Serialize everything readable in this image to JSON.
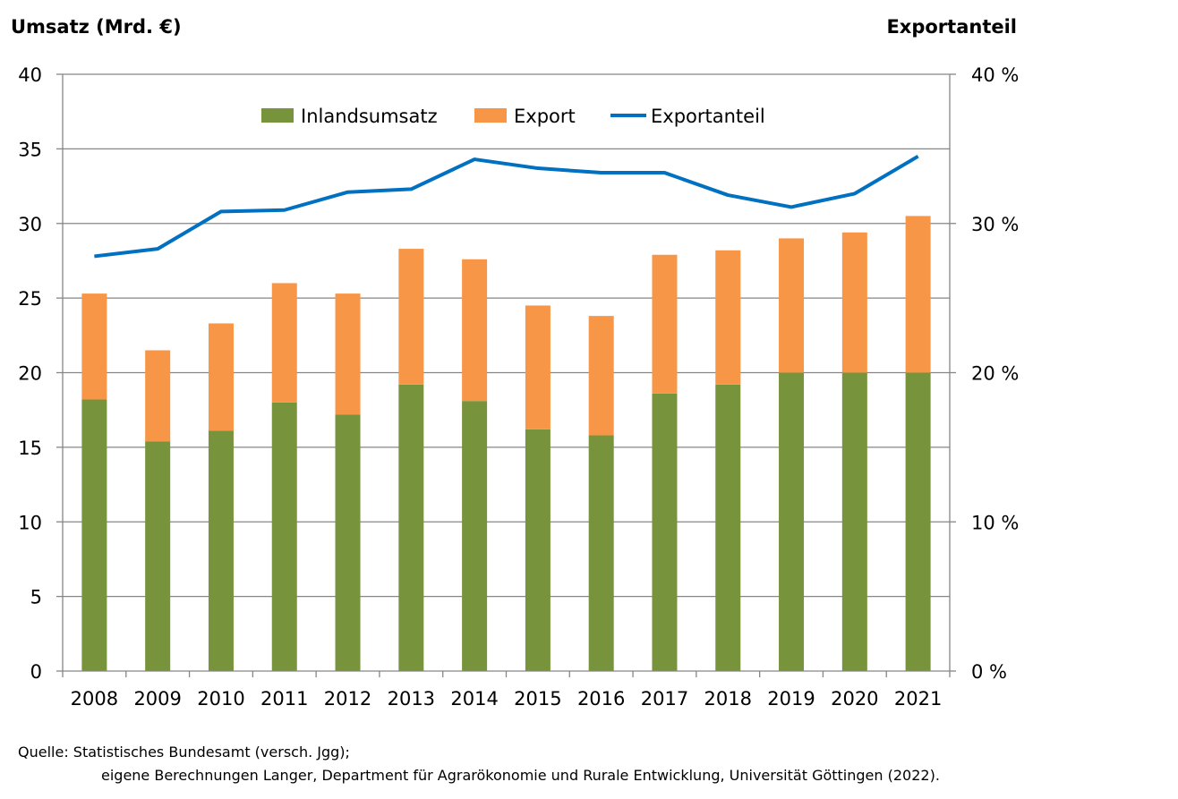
{
  "chart_data": {
    "type": "bar",
    "stacked": true,
    "ylabel_left": "Umsatz (Mrd. €)",
    "ylabel_right": "Exportanteil",
    "categories": [
      "2008",
      "2009",
      "2010",
      "2011",
      "2012",
      "2013",
      "2014",
      "2015",
      "2016",
      "2017",
      "2018",
      "2019",
      "2020",
      "2021"
    ],
    "series": [
      {
        "name": "Inlandsumsatz",
        "type": "bar",
        "axis": "left",
        "color": "#77933c",
        "values": [
          18.2,
          15.4,
          16.1,
          18.0,
          17.2,
          19.2,
          18.1,
          16.2,
          15.8,
          18.6,
          19.2,
          20.0,
          20.0,
          20.0
        ]
      },
      {
        "name": "Export",
        "type": "bar",
        "axis": "left",
        "color": "#f79646",
        "values": [
          7.1,
          6.1,
          7.2,
          8.0,
          8.1,
          9.1,
          9.5,
          8.3,
          8.0,
          9.3,
          9.0,
          9.0,
          9.4,
          10.5
        ]
      },
      {
        "name": "Exportanteil",
        "type": "line",
        "axis": "right",
        "color": "#0070c0",
        "values": [
          27.8,
          28.3,
          30.8,
          30.9,
          32.1,
          32.3,
          34.3,
          33.7,
          33.4,
          33.4,
          31.9,
          31.1,
          32.0,
          34.5
        ]
      }
    ],
    "ylim_left": [
      0,
      40
    ],
    "yticks_left": [
      "0",
      "5",
      "10",
      "15",
      "20",
      "25",
      "30",
      "35",
      "40"
    ],
    "ylim_right": [
      0,
      40
    ],
    "yticks_right": [
      "0 %",
      "10 %",
      "20 %",
      "30 %",
      "40 %"
    ],
    "yticks_right_values": [
      0,
      10,
      20,
      30,
      40
    ],
    "grid": true,
    "legend_position": "top-center"
  },
  "source": {
    "line1": "Quelle: Statistisches Bundesamt (versch. Jgg);",
    "line2": "eigene Berechnungen Langer, Department für Agrarökonomie und Rurale Entwicklung, Universität Göttingen (2022)."
  }
}
